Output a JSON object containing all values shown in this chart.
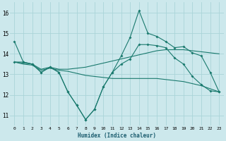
{
  "xlabel": "Humidex (Indice chaleur)",
  "background_color": "#cce8ec",
  "grid_color": "#aad4d8",
  "line_color": "#1a7a6e",
  "x": [
    0,
    1,
    2,
    3,
    4,
    5,
    6,
    7,
    8,
    9,
    10,
    11,
    12,
    13,
    14,
    15,
    16,
    17,
    18,
    19,
    20,
    21,
    22,
    23
  ],
  "line_max": [
    14.6,
    13.6,
    13.5,
    13.1,
    13.35,
    13.1,
    12.15,
    11.5,
    10.8,
    11.3,
    12.4,
    13.1,
    13.9,
    14.8,
    16.1,
    15.0,
    14.85,
    14.6,
    14.3,
    14.35,
    14.05,
    13.9,
    13.1,
    12.15
  ],
  "line_min": [
    13.6,
    13.6,
    13.5,
    13.1,
    13.35,
    13.1,
    12.15,
    11.5,
    10.8,
    11.3,
    12.4,
    13.1,
    13.5,
    13.75,
    14.45,
    14.45,
    14.4,
    14.3,
    13.8,
    13.5,
    12.9,
    12.5,
    12.2,
    12.15
  ],
  "line_avg_hi": [
    13.6,
    13.55,
    13.5,
    13.25,
    13.35,
    13.25,
    13.25,
    13.3,
    13.35,
    13.45,
    13.55,
    13.65,
    13.75,
    13.85,
    13.95,
    14.05,
    14.15,
    14.2,
    14.2,
    14.2,
    14.15,
    14.1,
    14.05,
    14.0
  ],
  "line_avg_lo": [
    13.6,
    13.5,
    13.45,
    13.2,
    13.3,
    13.2,
    13.15,
    13.05,
    12.95,
    12.9,
    12.85,
    12.8,
    12.8,
    12.8,
    12.8,
    12.8,
    12.8,
    12.75,
    12.7,
    12.65,
    12.55,
    12.45,
    12.3,
    12.15
  ],
  "xlim": [
    -0.5,
    23.5
  ],
  "ylim": [
    10.5,
    16.5
  ],
  "xticks": [
    0,
    1,
    2,
    3,
    4,
    5,
    6,
    7,
    8,
    9,
    10,
    11,
    12,
    13,
    14,
    15,
    16,
    17,
    18,
    19,
    20,
    21,
    22,
    23
  ],
  "yticks": [
    11,
    12,
    13,
    14,
    15,
    16
  ]
}
